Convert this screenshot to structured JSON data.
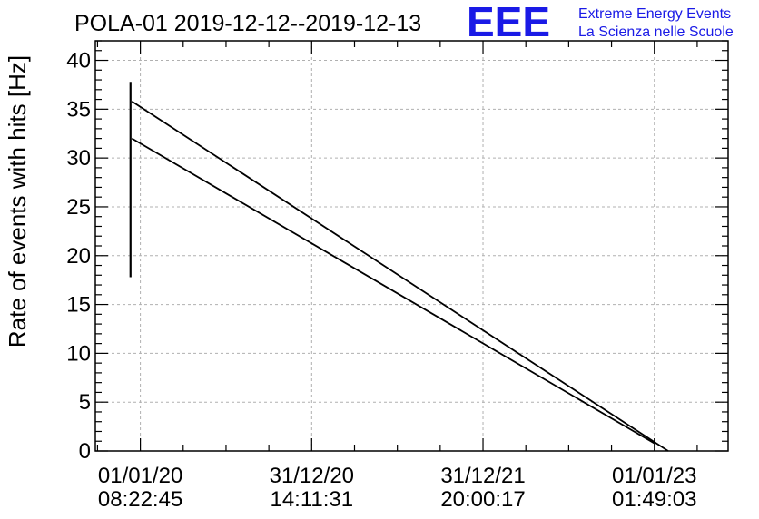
{
  "chart_data": {
    "type": "line",
    "title": "POLA-01 2019-12-12--2019-12-13",
    "ylabel": "Rate of events with hits [Hz]",
    "xlabel": "",
    "ylim": [
      0,
      42
    ],
    "y_ticks": [
      0,
      5,
      10,
      15,
      20,
      25,
      30,
      35,
      40
    ],
    "x_ticks": [
      {
        "date": "01/01/20",
        "time": "08:22:45",
        "t": 0.0
      },
      {
        "date": "31/12/20",
        "time": "14:11:31",
        "t": 365.242
      },
      {
        "date": "31/12/21",
        "time": "20:00:17",
        "t": 730.484
      },
      {
        "date": "01/01/23",
        "time": "01:49:03",
        "t": 1095.726
      }
    ],
    "xlim": [
      -96,
      1253
    ],
    "grid": true,
    "series": [
      {
        "points": [
          {
            "t": -18,
            "y": 35.8
          },
          {
            "t": 1125,
            "y": 0.0
          }
        ]
      },
      {
        "points": [
          {
            "t": -18,
            "y": 32.0
          },
          {
            "t": 1095,
            "y": 0.8
          }
        ]
      }
    ],
    "error_bar": {
      "t": -21,
      "y_low": 17.8,
      "y_high": 37.8
    }
  },
  "logo": {
    "mark": "EEE",
    "line1": "Extreme Energy Events",
    "line2": "La Scienza nelle Scuole",
    "color": "#1a1ae6"
  }
}
